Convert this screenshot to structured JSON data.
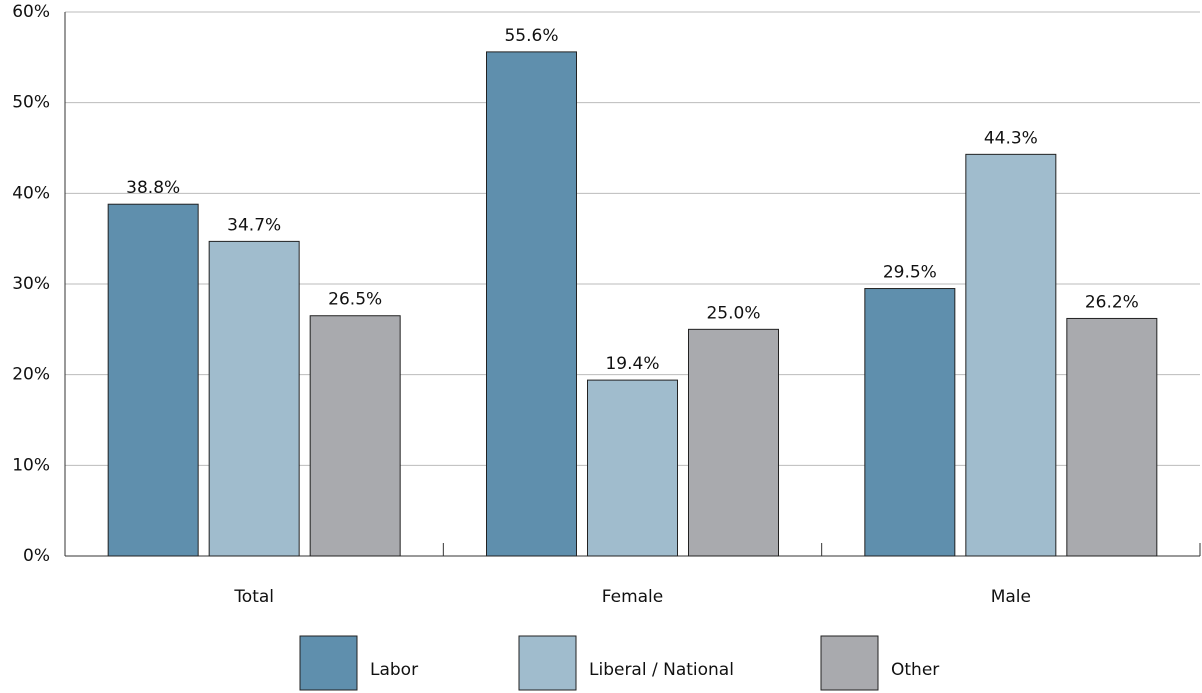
{
  "chart_data": {
    "type": "bar",
    "categories": [
      "Total",
      "Female",
      "Male"
    ],
    "series": [
      {
        "name": "Labor",
        "color": "#5f8fad",
        "values": [
          38.8,
          55.6,
          29.5
        ],
        "value_labels": [
          "38.8%",
          "55.6%",
          "29.5%"
        ]
      },
      {
        "name": "Liberal / National",
        "color": "#a0bccd",
        "values": [
          34.7,
          19.4,
          44.3
        ],
        "value_labels": [
          "34.7%",
          "19.4%",
          "44.3%"
        ]
      },
      {
        "name": "Other",
        "color": "#a9aaae",
        "values": [
          26.5,
          25.0,
          26.2
        ],
        "value_labels": [
          "26.5%",
          "25.0%",
          "26.2%"
        ]
      }
    ],
    "ylim": [
      0,
      60
    ],
    "yticks": [
      {
        "value": 0,
        "label": "0%"
      },
      {
        "value": 10,
        "label": "10%"
      },
      {
        "value": 20,
        "label": "20%"
      },
      {
        "value": 30,
        "label": "30%"
      },
      {
        "value": 40,
        "label": "40%"
      },
      {
        "value": 50,
        "label": "50%"
      },
      {
        "value": 60,
        "label": "60%"
      }
    ],
    "grid": true,
    "legend": "bottom"
  }
}
